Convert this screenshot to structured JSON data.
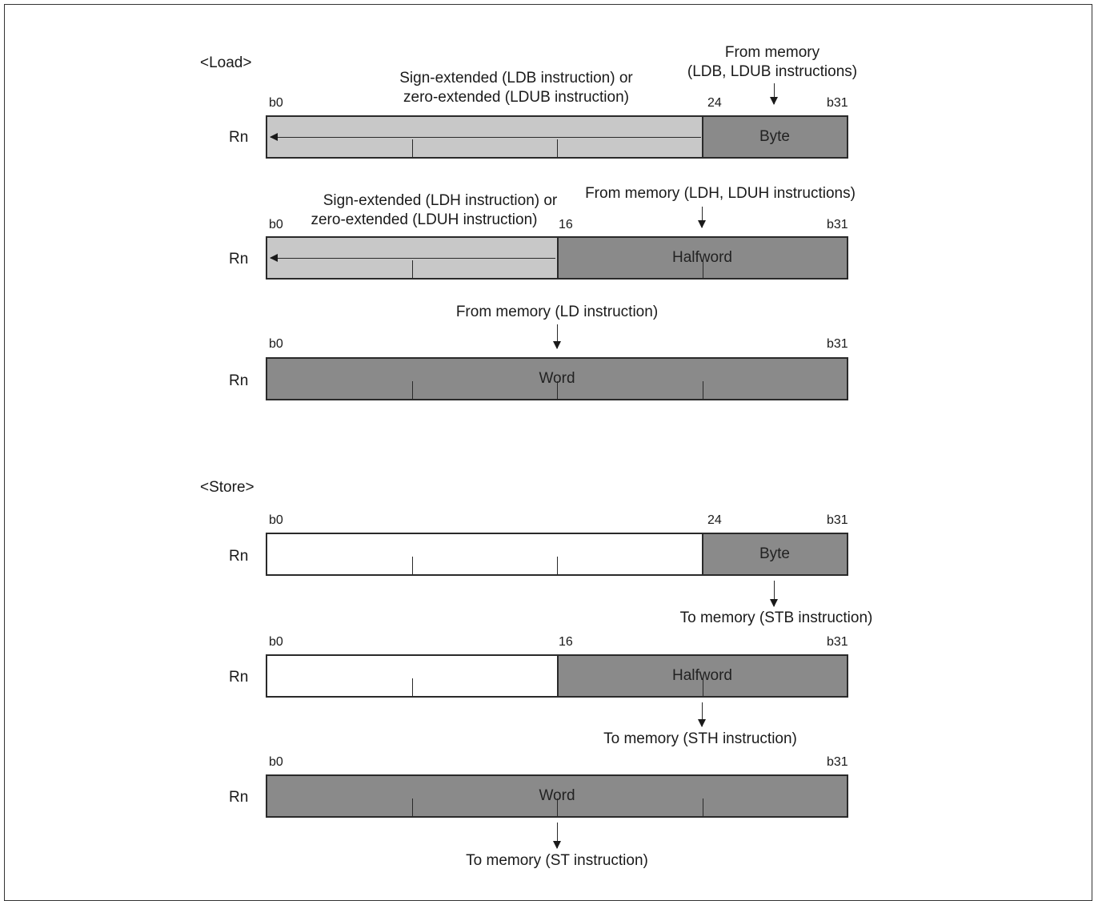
{
  "load": {
    "heading": "<Load>",
    "byte": {
      "ext_text_line1": "Sign-extended (LDB instruction) or",
      "ext_text_line2": "zero-extended (LDUB instruction)",
      "from_line1": "From memory",
      "from_line2": "(LDB, LDUB instructions)",
      "bit_start": "b0",
      "bit_mid": "24",
      "bit_end": "b31",
      "reg": "Rn",
      "field": "Byte"
    },
    "halfword": {
      "ext_text_line1": "Sign-extended (LDH instruction) or",
      "ext_text_line2": "zero-extended (LDUH instruction)",
      "from_text": "From memory (LDH, LDUH instructions)",
      "bit_start": "b0",
      "bit_mid": "16",
      "bit_end": "b31",
      "reg": "Rn",
      "field": "Halfword"
    },
    "word": {
      "from_text": "From memory (LD instruction)",
      "bit_start": "b0",
      "bit_end": "b31",
      "reg": "Rn",
      "field": "Word"
    }
  },
  "store": {
    "heading": "<Store>",
    "byte": {
      "bit_start": "b0",
      "bit_mid": "24",
      "bit_end": "b31",
      "reg": "Rn",
      "field": "Byte",
      "to_text": "To memory (STB instruction)"
    },
    "halfword": {
      "bit_start": "b0",
      "bit_mid": "16",
      "bit_end": "b31",
      "reg": "Rn",
      "field": "Halfword",
      "to_text": "To memory (STH instruction)"
    },
    "word": {
      "bit_start": "b0",
      "bit_end": "b31",
      "reg": "Rn",
      "field": "Word",
      "to_text": "To memory (ST instruction)"
    }
  },
  "colors": {
    "extended_fill": "#c8c8c8",
    "data_fill": "#8a8a8a",
    "empty_fill": "#ffffff"
  }
}
